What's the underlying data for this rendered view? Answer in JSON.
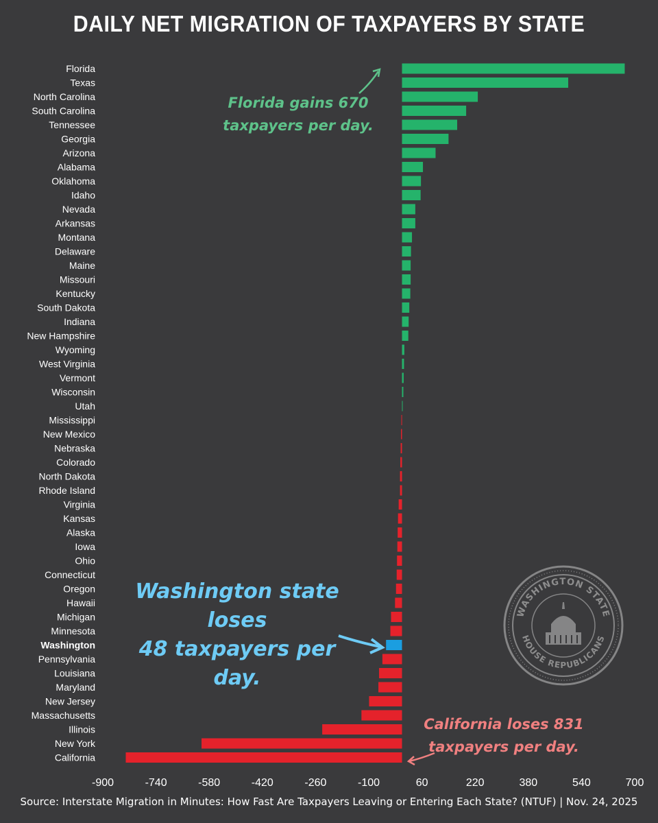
{
  "page": {
    "title": "DAILY NET MIGRATION OF TAXPAYERS BY STATE",
    "source": "Source: Interstate Migration in Minutes: How Fast Are Taxpayers Leaving or Entering Each State? (NTUF) | Nov. 24, 2025"
  },
  "annotations": {
    "florida": [
      "Florida gains 670",
      "taxpayers per day."
    ],
    "washington": [
      "Washington state loses",
      "48 taxpayers per day."
    ],
    "california": [
      "California loses 831",
      "taxpayers per day."
    ]
  },
  "seal": {
    "top_text": "WASHINGTON STATE",
    "bottom_text": "HOUSE REPUBLICANS"
  },
  "colors": {
    "positive": "#25b36b",
    "negative": "#e5222b",
    "highlight": "#1b9ee0",
    "highlight_label": "#5bc0f0",
    "background": "#3a3a3c"
  },
  "chart_data": {
    "type": "bar",
    "orientation": "horizontal",
    "title": "DAILY NET MIGRATION OF TAXPAYERS BY STATE",
    "xlim": [
      -900,
      700
    ],
    "xticks": [
      -900,
      -740,
      -580,
      -420,
      -260,
      -100,
      60,
      220,
      380,
      540,
      700
    ],
    "highlight": "Washington",
    "categories": [
      "Florida",
      "Texas",
      "North Carolina",
      "South Carolina",
      "Tennessee",
      "Georgia",
      "Arizona",
      "Alabama",
      "Oklahoma",
      "Idaho",
      "Nevada",
      "Arkansas",
      "Montana",
      "Delaware",
      "Maine",
      "Missouri",
      "Kentucky",
      "South Dakota",
      "Indiana",
      "New Hampshire",
      "Wyoming",
      "West Virginia",
      "Vermont",
      "Wisconsin",
      "Utah",
      "Mississippi",
      "New Mexico",
      "Nebraska",
      "Colorado",
      "North Dakota",
      "Rhode Island",
      "Virginia",
      "Kansas",
      "Alaska",
      "Iowa",
      "Ohio",
      "Connecticut",
      "Oregon",
      "Hawaii",
      "Michigan",
      "Minnesota",
      "Washington",
      "Pennsylvania",
      "Louisiana",
      "Maryland",
      "New Jersey",
      "Massachusetts",
      "Illinois",
      "New York",
      "California"
    ],
    "values": [
      670,
      500,
      228,
      193,
      166,
      140,
      101,
      63,
      57,
      56,
      40,
      40,
      30,
      27,
      26,
      26,
      25,
      22,
      20,
      19,
      7,
      6,
      5,
      4,
      2,
      -2,
      -3,
      -4,
      -5,
      -6,
      -6,
      -10,
      -12,
      -13,
      -14,
      -15,
      -16,
      -18,
      -21,
      -33,
      -35,
      -48,
      -59,
      -69,
      -71,
      -99,
      -122,
      -240,
      -603,
      -831
    ]
  }
}
